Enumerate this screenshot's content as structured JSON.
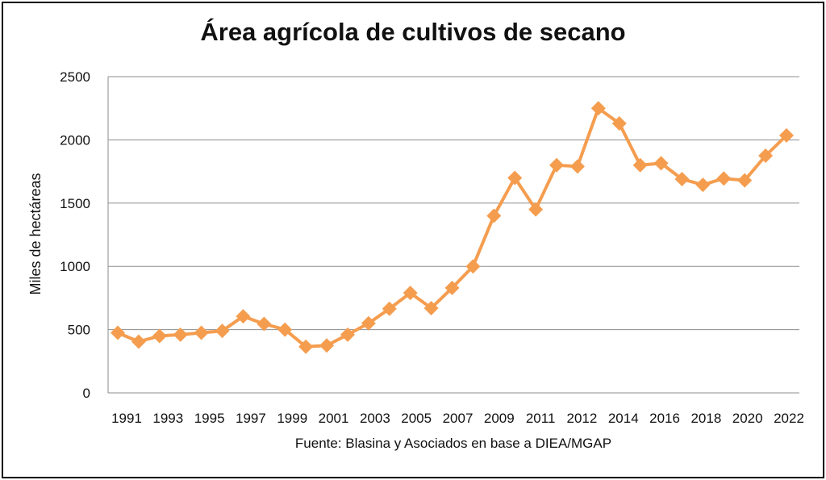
{
  "chart_data": {
    "type": "line",
    "title": "Área agrícola de cultivos de secano",
    "ylabel": "Miles de hectáreas",
    "xlabel": "",
    "source": "Fuente: Blasina y Asociados en base a DIEA/MGAP",
    "ylim": [
      0,
      2500
    ],
    "yticks": [
      "0",
      "500",
      "1000",
      "1500",
      "2000",
      "2500"
    ],
    "xtick_labels": [
      "1991",
      "1993",
      "1995",
      "1997",
      "1999",
      "2001",
      "2003",
      "2005",
      "2007",
      "2009",
      "2011",
      "2012",
      "2014",
      "2016",
      "2018",
      "2020",
      "2022"
    ],
    "grid": true,
    "legend": "none",
    "color": "#f59d4f",
    "values": [
      475,
      405,
      450,
      460,
      475,
      490,
      605,
      545,
      500,
      365,
      375,
      460,
      550,
      665,
      790,
      670,
      830,
      1000,
      1400,
      1700,
      1450,
      1800,
      1790,
      2250,
      2130,
      1800,
      1815,
      1690,
      1645,
      1695,
      1680,
      1875,
      2035
    ]
  }
}
